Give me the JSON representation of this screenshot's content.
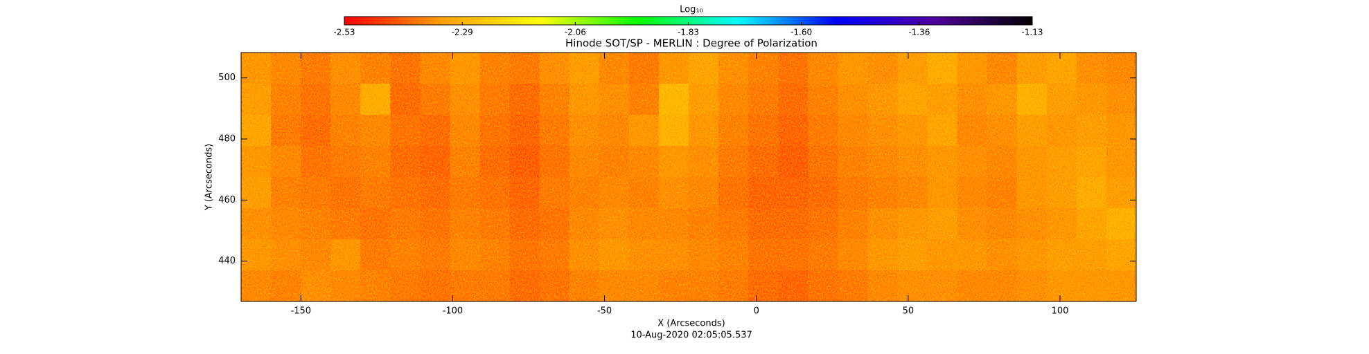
{
  "chart_data": {
    "type": "heatmap",
    "title": "Hinode SOT/SP - MERLIN : Degree of Polarization",
    "xlabel": "X (Arcseconds)",
    "ylabel": "Y (Arcseconds)",
    "timestamp": "10-Aug-2020 02:05:05.537",
    "colorbar_label": "Log₁₀",
    "colorbar_lim": [
      -2.53,
      -1.13
    ],
    "colorbar_ticks": [
      -2.53,
      -2.29,
      -2.06,
      -1.83,
      {
        "value": -1.6,
        "label": "-1.60"
      },
      -1.36,
      -1.13
    ],
    "colormap": [
      "#ff0000",
      "#ffa000",
      "#ffff00",
      "#00ff00",
      "#00ffff",
      "#0000ff",
      "#5000a0",
      "#000000"
    ],
    "xlim": [
      -169.7,
      125.1
    ],
    "ylim": [
      426.8,
      508.3
    ],
    "xticks": [
      -150,
      -100,
      -50,
      0,
      50,
      100
    ],
    "yticks": [
      440,
      460,
      480,
      500
    ],
    "z": [
      [
        -2.36,
        -2.38,
        -2.4,
        -2.37,
        -2.39,
        -2.41,
        -2.38,
        -2.36,
        -2.39,
        -2.4,
        -2.37,
        -2.35,
        -2.38,
        -2.4,
        -2.36,
        -2.34,
        -2.37,
        -2.39,
        -2.41,
        -2.38,
        -2.36,
        -2.37,
        -2.35,
        -2.33,
        -2.36,
        -2.38,
        -2.35,
        -2.34,
        -2.37,
        -2.38
      ],
      [
        -2.35,
        -2.39,
        -2.41,
        -2.38,
        -2.33,
        -2.42,
        -2.4,
        -2.37,
        -2.4,
        -2.42,
        -2.39,
        -2.36,
        -2.37,
        -2.39,
        -2.3,
        -2.35,
        -2.38,
        -2.4,
        -2.42,
        -2.39,
        -2.37,
        -2.36,
        -2.34,
        -2.35,
        -2.37,
        -2.36,
        -2.32,
        -2.35,
        -2.36,
        -2.37
      ],
      [
        -2.34,
        -2.4,
        -2.42,
        -2.39,
        -2.38,
        -2.41,
        -2.42,
        -2.38,
        -2.41,
        -2.43,
        -2.4,
        -2.37,
        -2.38,
        -2.36,
        -2.31,
        -2.36,
        -2.39,
        -2.41,
        -2.43,
        -2.4,
        -2.38,
        -2.37,
        -2.36,
        -2.34,
        -2.38,
        -2.37,
        -2.35,
        -2.36,
        -2.35,
        -2.36
      ],
      [
        -2.36,
        -2.38,
        -2.41,
        -2.4,
        -2.39,
        -2.42,
        -2.43,
        -2.39,
        -2.42,
        -2.44,
        -2.41,
        -2.38,
        -2.39,
        -2.38,
        -2.36,
        -2.37,
        -2.4,
        -2.42,
        -2.44,
        -2.41,
        -2.39,
        -2.38,
        -2.37,
        -2.36,
        -2.37,
        -2.38,
        -2.36,
        -2.35,
        -2.34,
        -2.36
      ],
      [
        -2.35,
        -2.39,
        -2.4,
        -2.41,
        -2.4,
        -2.41,
        -2.42,
        -2.4,
        -2.41,
        -2.43,
        -2.4,
        -2.39,
        -2.38,
        -2.39,
        -2.37,
        -2.38,
        -2.41,
        -2.43,
        -2.43,
        -2.42,
        -2.4,
        -2.39,
        -2.38,
        -2.36,
        -2.38,
        -2.39,
        -2.36,
        -2.35,
        -2.33,
        -2.35
      ],
      [
        -2.37,
        -2.38,
        -2.39,
        -2.4,
        -2.41,
        -2.4,
        -2.41,
        -2.39,
        -2.4,
        -2.42,
        -2.41,
        -2.38,
        -2.37,
        -2.38,
        -2.38,
        -2.39,
        -2.4,
        -2.42,
        -2.42,
        -2.41,
        -2.39,
        -2.37,
        -2.36,
        -2.35,
        -2.37,
        -2.38,
        -2.37,
        -2.36,
        -2.34,
        -2.32
      ],
      [
        -2.36,
        -2.37,
        -2.38,
        -2.36,
        -2.4,
        -2.39,
        -2.4,
        -2.38,
        -2.39,
        -2.41,
        -2.4,
        -2.37,
        -2.36,
        -2.37,
        -2.37,
        -2.38,
        -2.39,
        -2.41,
        -2.41,
        -2.4,
        -2.38,
        -2.36,
        -2.35,
        -2.36,
        -2.36,
        -2.37,
        -2.36,
        -2.35,
        -2.35,
        -2.34
      ],
      [
        -2.38,
        -2.39,
        -2.37,
        -2.38,
        -2.39,
        -2.4,
        -2.41,
        -2.4,
        -2.4,
        -2.42,
        -2.41,
        -2.39,
        -2.38,
        -2.38,
        -2.39,
        -2.39,
        -2.4,
        -2.42,
        -2.43,
        -2.41,
        -2.4,
        -2.38,
        -2.37,
        -2.37,
        -2.38,
        -2.38,
        -2.37,
        -2.36,
        -2.36,
        -2.36
      ]
    ]
  }
}
